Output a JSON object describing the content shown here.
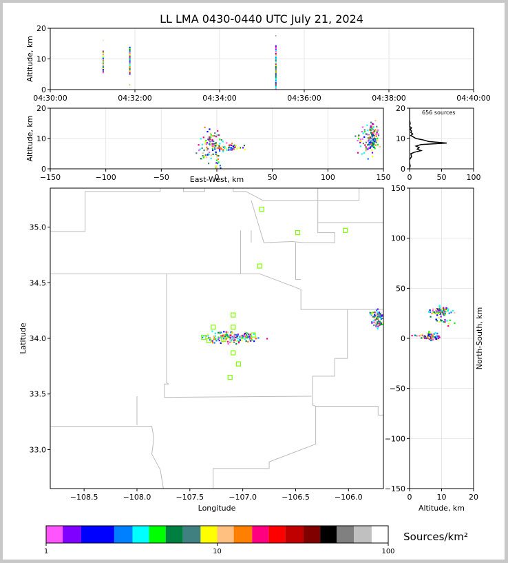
{
  "title": "LL LMA 0430-0440 UTC July 21, 2024",
  "colors": {
    "axis": "#000000",
    "grid": "#e6e6e6",
    "border": "#bbbbbb",
    "station": "#7fff00",
    "histogram": "#000000"
  },
  "chart_data": [
    {
      "id": "time-height",
      "type": "scatter",
      "title": "LL LMA 0430-0440 UTC July 21, 2024",
      "xlabel": "",
      "ylabel": "Altitude, km",
      "xlim": [
        0,
        10
      ],
      "ylim": [
        0,
        20
      ],
      "x_tick_values": [
        0,
        2,
        4,
        6,
        8,
        10
      ],
      "x_tick_labels": [
        "04:30:00",
        "04:32:00",
        "04:34:00",
        "04:36:00",
        "04:38:00",
        "04:40:00"
      ],
      "y_ticks": [
        0,
        10,
        20
      ],
      "grid": true,
      "strokes": [
        {
          "t": 1.25,
          "z0": 5.5,
          "z1": 12.5,
          "extra": [
            16
          ]
        },
        {
          "t": 1.88,
          "z0": 5.0,
          "z1": 14.0,
          "extra": [
            1.5
          ]
        },
        {
          "t": 5.33,
          "z0": 0.2,
          "z1": 14.5,
          "extra": [
            17.5
          ]
        }
      ]
    },
    {
      "id": "ew-height",
      "type": "scatter",
      "xlabel": "East-West, km",
      "ylabel": "Altitude, km",
      "xlim": [
        -150,
        150
      ],
      "ylim": [
        0,
        20
      ],
      "x_ticks": [
        -150,
        -100,
        -50,
        0,
        50,
        100,
        150
      ],
      "y_ticks": [
        0,
        10,
        20
      ],
      "grid": true,
      "clusters": [
        {
          "x": -6,
          "z": 8,
          "dx": 6,
          "dz": 3,
          "n": 90
        },
        {
          "x": 10,
          "z": 7,
          "dx": 10,
          "dz": 0.8,
          "n": 60
        },
        {
          "x": 1,
          "z": 1.5,
          "dx": 2,
          "dz": 1.5,
          "n": 10
        },
        {
          "x": 140,
          "z": 10,
          "dx": 4,
          "dz": 3.5,
          "n": 130
        },
        {
          "x": 132,
          "z": 9,
          "dx": 5,
          "dz": 3,
          "n": 30
        }
      ]
    },
    {
      "id": "altitude-histogram",
      "type": "line",
      "xlim": [
        0,
        100
      ],
      "ylim": [
        0,
        20
      ],
      "x_ticks": [
        0,
        50,
        100
      ],
      "y_ticks": [
        0,
        10,
        20
      ],
      "annotation": "656 sources",
      "grid": true,
      "profile": [
        {
          "z": 0,
          "n": 0
        },
        {
          "z": 1,
          "n": 1
        },
        {
          "z": 2,
          "n": 0
        },
        {
          "z": 3,
          "n": 0
        },
        {
          "z": 4,
          "n": 3
        },
        {
          "z": 5,
          "n": 2
        },
        {
          "z": 5.5,
          "n": 8
        },
        {
          "z": 6,
          "n": 18
        },
        {
          "z": 6.5,
          "n": 12
        },
        {
          "z": 7,
          "n": 15
        },
        {
          "z": 7.5,
          "n": 10
        },
        {
          "z": 8,
          "n": 18
        },
        {
          "z": 8.5,
          "n": 58
        },
        {
          "z": 9,
          "n": 30
        },
        {
          "z": 9.5,
          "n": 22
        },
        {
          "z": 10,
          "n": 10
        },
        {
          "z": 10.5,
          "n": 6
        },
        {
          "z": 11,
          "n": 2
        },
        {
          "z": 11.5,
          "n": 5
        },
        {
          "z": 12,
          "n": 2
        },
        {
          "z": 12.5,
          "n": 3
        },
        {
          "z": 13,
          "n": 1
        },
        {
          "z": 13.5,
          "n": 3
        },
        {
          "z": 14,
          "n": 0
        },
        {
          "z": 15,
          "n": 1
        },
        {
          "z": 16,
          "n": 0
        },
        {
          "z": 20,
          "n": 0
        }
      ]
    },
    {
      "id": "plan-view",
      "type": "scatter",
      "xlabel": "Longitude",
      "ylabel": "Latitude",
      "xlim": [
        -108.82,
        -105.67
      ],
      "ylim": [
        32.65,
        35.35
      ],
      "x_ticks": [
        -108.5,
        -108.0,
        -107.5,
        -107.0,
        -106.5,
        -106.0
      ],
      "y_ticks": [
        33.0,
        33.5,
        34.0,
        34.5,
        35.0
      ],
      "stations": [
        [
          -106.82,
          35.16
        ],
        [
          -106.48,
          34.95
        ],
        [
          -106.03,
          34.97
        ],
        [
          -106.84,
          34.65
        ],
        [
          -107.09,
          34.21
        ],
        [
          -107.28,
          34.1
        ],
        [
          -107.09,
          34.1
        ],
        [
          -107.37,
          34.01
        ],
        [
          -107.32,
          33.98
        ],
        [
          -107.18,
          33.99
        ],
        [
          -106.9,
          34.03
        ],
        [
          -107.09,
          33.87
        ],
        [
          -107.04,
          33.77
        ],
        [
          -107.12,
          33.65
        ]
      ],
      "clusters": [
        {
          "x": -107.1,
          "y": 34.01,
          "dx": 0.17,
          "dy": 0.035,
          "n": 160
        },
        {
          "x": -105.72,
          "y": 34.2,
          "dx": 0.05,
          "dy": 0.03,
          "n": 60
        },
        {
          "x": -105.72,
          "y": 34.13,
          "dx": 0.05,
          "dy": 0.025,
          "n": 30
        }
      ],
      "borders": [
        [
          [
            -108.82,
            34.96
          ],
          [
            -108.49,
            34.96
          ],
          [
            -108.49,
            35.32
          ],
          [
            -107.78,
            35.32
          ],
          [
            -107.78,
            35.35
          ]
        ],
        [
          [
            -107.56,
            35.35
          ],
          [
            -107.56,
            35.32
          ],
          [
            -107.36,
            35.32
          ],
          [
            -107.36,
            35.35
          ]
        ],
        [
          [
            -107.09,
            35.35
          ],
          [
            -107.09,
            35.32
          ],
          [
            -106.97,
            35.32
          ],
          [
            -106.81,
            35.24
          ],
          [
            -106.29,
            35.24
          ],
          [
            -106.29,
            35.35
          ]
        ],
        [
          [
            -106.92,
            35.24
          ],
          [
            -106.8,
            34.86
          ],
          [
            -106.53,
            34.87
          ],
          [
            -106.42,
            34.86
          ],
          [
            -106.13,
            34.86
          ],
          [
            -106.13,
            34.95
          ],
          [
            -106.29,
            34.95
          ],
          [
            -106.29,
            35.24
          ]
        ],
        [
          [
            -106.29,
            35.24
          ],
          [
            -105.9,
            35.24
          ],
          [
            -105.9,
            35.35
          ]
        ],
        [
          [
            -106.29,
            35.04
          ],
          [
            -105.67,
            35.04
          ]
        ],
        [
          [
            -107.02,
            34.97
          ],
          [
            -107.02,
            34.58
          ],
          [
            -106.84,
            34.58
          ],
          [
            -106.45,
            34.44
          ],
          [
            -106.45,
            34.26
          ],
          [
            -105.67,
            34.26
          ]
        ],
        [
          [
            -106.92,
            34.97
          ],
          [
            -106.92,
            34.86
          ]
        ],
        [
          [
            -106.5,
            34.86
          ],
          [
            -106.5,
            34.53
          ],
          [
            -106.45,
            34.53
          ]
        ],
        [
          [
            -108.82,
            34.58
          ],
          [
            -107.02,
            34.58
          ]
        ],
        [
          [
            -107.72,
            34.58
          ],
          [
            -107.72,
            33.6
          ],
          [
            -107.7,
            33.59
          ],
          [
            -107.74,
            33.59
          ],
          [
            -107.74,
            33.47
          ],
          [
            -106.35,
            33.48
          ]
        ],
        [
          [
            -108.0,
            33.48
          ],
          [
            -108.0,
            33.22
          ]
        ],
        [
          [
            -108.82,
            33.21
          ],
          [
            -107.86,
            33.21
          ],
          [
            -107.84,
            33.1
          ],
          [
            -107.86,
            32.96
          ],
          [
            -107.78,
            32.82
          ],
          [
            -107.75,
            32.65
          ]
        ],
        [
          [
            -106.34,
            33.66
          ],
          [
            -106.34,
            33.4
          ],
          [
            -106.31,
            33.39
          ],
          [
            -105.72,
            33.39
          ],
          [
            -105.72,
            33.31
          ],
          [
            -105.67,
            33.31
          ]
        ],
        [
          [
            -106.34,
            33.66
          ],
          [
            -106.13,
            33.66
          ],
          [
            -106.13,
            33.82
          ],
          [
            -106.01,
            33.82
          ],
          [
            -106.01,
            34.26
          ]
        ],
        [
          [
            -106.31,
            33.39
          ],
          [
            -106.31,
            33.05
          ],
          [
            -106.75,
            32.89
          ],
          [
            -106.75,
            32.83
          ],
          [
            -107.28,
            32.83
          ],
          [
            -107.28,
            32.65
          ]
        ]
      ]
    },
    {
      "id": "ns-height",
      "type": "scatter",
      "xlabel": "Altitude, km",
      "ylabel": "North-South, km",
      "xlim": [
        0,
        20
      ],
      "ylim": [
        -150,
        150
      ],
      "x_ticks": [
        0,
        10,
        20
      ],
      "y_ticks": [
        -150,
        -100,
        -50,
        0,
        50,
        100,
        150
      ],
      "grid": true,
      "clusters": [
        {
          "x": 9.5,
          "y": 27,
          "dx": 2.5,
          "dy": 3,
          "n": 90
        },
        {
          "x": 11,
          "y": 17,
          "dx": 2,
          "dy": 3,
          "n": 20
        },
        {
          "x": 7,
          "y": 2,
          "dx": 2,
          "dy": 3,
          "n": 70
        },
        {
          "x": 2,
          "y": 3,
          "dx": 1.5,
          "dy": 1,
          "n": 10
        }
      ]
    },
    {
      "id": "colorbar",
      "type": "heatmap",
      "label": "Sources/km²",
      "scale": "log",
      "range": [
        1,
        100
      ],
      "tick_labels": [
        "1",
        "10",
        "100"
      ],
      "bins": [
        {
          "color": "#ff55ff",
          "from": 1.0,
          "to": 1.25
        },
        {
          "color": "#8000ff",
          "from": 1.25,
          "to": 1.6
        },
        {
          "color": "#0000ff",
          "from": 1.6,
          "to": 2.5
        },
        {
          "color": "#0080ff",
          "from": 2.5,
          "to": 3.2
        },
        {
          "color": "#00ffff",
          "from": 3.2,
          "to": 4.0
        },
        {
          "color": "#00ff00",
          "from": 4.0,
          "to": 5.0
        },
        {
          "color": "#008040",
          "from": 5.0,
          "to": 6.3
        },
        {
          "color": "#408080",
          "from": 6.3,
          "to": 8.0
        },
        {
          "color": "#ffff00",
          "from": 8.0,
          "to": 10.0
        },
        {
          "color": "#ffc080",
          "from": 10.0,
          "to": 12.5
        },
        {
          "color": "#ff8000",
          "from": 12.5,
          "to": 16.0
        },
        {
          "color": "#ff0080",
          "from": 16.0,
          "to": 20.0
        },
        {
          "color": "#ff0000",
          "from": 20.0,
          "to": 25.0
        },
        {
          "color": "#c00000",
          "from": 25.0,
          "to": 32.0
        },
        {
          "color": "#800000",
          "from": 32.0,
          "to": 40.0
        },
        {
          "color": "#000000",
          "from": 40.0,
          "to": 50.0
        },
        {
          "color": "#808080",
          "from": 50.0,
          "to": 63.0
        },
        {
          "color": "#c0c0c0",
          "from": 63.0,
          "to": 80.0
        },
        {
          "color": "#ffffff",
          "from": 80.0,
          "to": 100.0
        }
      ]
    }
  ]
}
